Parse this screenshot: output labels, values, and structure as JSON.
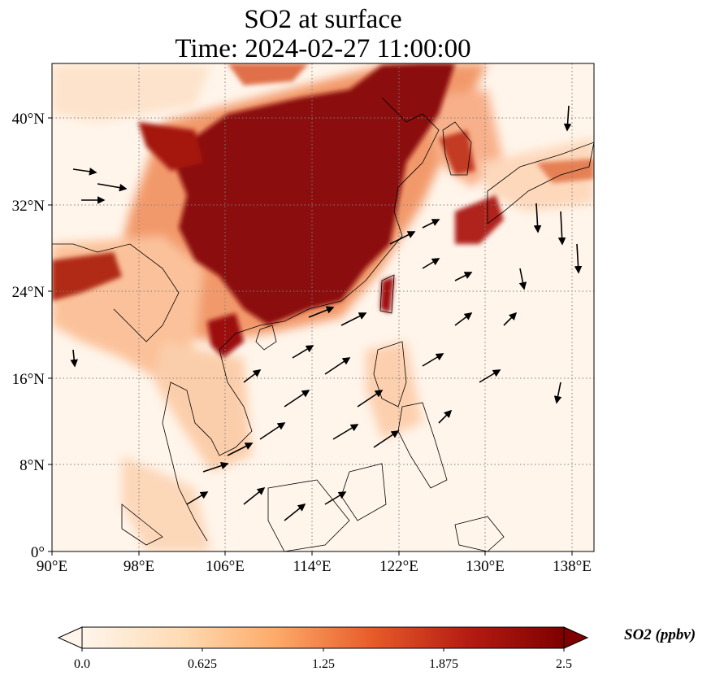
{
  "title": {
    "line1": "SO2 at surface",
    "line2": "Time: 2024-02-27 11:00:00"
  },
  "axes": {
    "x_ticks": [
      "90°E",
      "98°E",
      "106°E",
      "114°E",
      "122°E",
      "130°E",
      "138°E"
    ],
    "y_ticks": [
      "0°",
      "8°N",
      "16°N",
      "24°N",
      "32°N",
      "40°N"
    ],
    "lon_range": [
      90,
      140
    ],
    "lat_range": [
      0,
      45
    ],
    "gridlines": "dotted"
  },
  "colorbar": {
    "label": "SO2 (ppbv)",
    "ticks": [
      "0.0",
      "0.625",
      "1.25",
      "1.875",
      "2.5"
    ],
    "range": [
      0,
      2.5
    ],
    "colormap": [
      "#fff5eb",
      "#fdd0a2",
      "#fd8d3c",
      "#d94801",
      "#a50f15",
      "#7f0000"
    ]
  },
  "chart_data": {
    "type": "heatmap",
    "title": "SO2 at surface",
    "subtitle": "Time: 2024-02-27 11:00:00",
    "variable": "SO2",
    "units": "ppbv",
    "lon_range": [
      90,
      140
    ],
    "lat_range": [
      0,
      45
    ],
    "value_range": [
      0,
      2.5
    ],
    "wind_vectors": true
  },
  "colors": {
    "background": "#ffffff",
    "low": "#fff5eb",
    "high": "#7f0000",
    "coastline": "#000000",
    "grid": "#808080"
  }
}
